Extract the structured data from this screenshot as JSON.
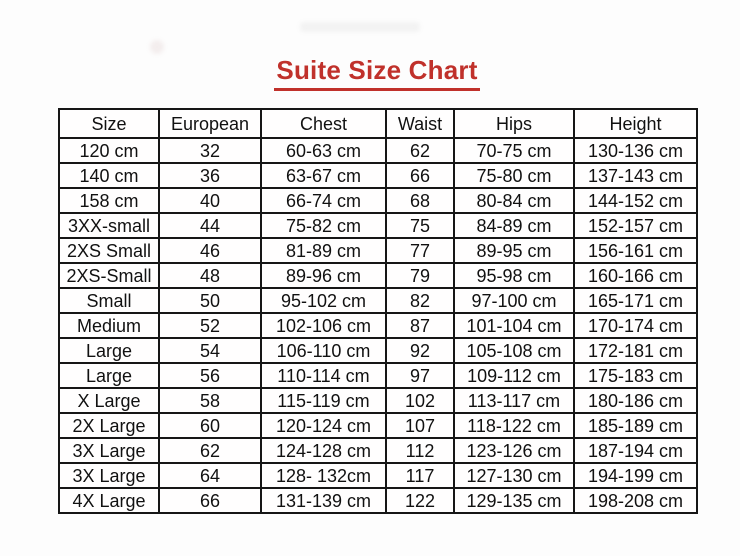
{
  "title": {
    "text": "Suite Size Chart",
    "color": "#c0312b"
  },
  "table": {
    "columns": [
      "Size",
      "European",
      "Chest",
      "Waist",
      "Hips",
      "Height"
    ],
    "rows": [
      [
        "120 cm",
        "32",
        "60-63 cm",
        "62",
        "70-75 cm",
        "130-136 cm"
      ],
      [
        "140 cm",
        "36",
        "63-67 cm",
        "66",
        "75-80 cm",
        "137-143 cm"
      ],
      [
        "158 cm",
        "40",
        "66-74 cm",
        "68",
        "80-84 cm",
        "144-152 cm"
      ],
      [
        "3XX-small",
        "44",
        "75-82 cm",
        "75",
        "84-89 cm",
        "152-157 cm"
      ],
      [
        "2XS Small",
        "46",
        "81-89 cm",
        "77",
        "89-95 cm",
        "156-161 cm"
      ],
      [
        "2XS-Small",
        "48",
        "89-96 cm",
        "79",
        "95-98 cm",
        "160-166 cm"
      ],
      [
        "Small",
        "50",
        "95-102 cm",
        "82",
        "97-100 cm",
        "165-171 cm"
      ],
      [
        "Medium",
        "52",
        "102-106 cm",
        "87",
        "101-104 cm",
        "170-174 cm"
      ],
      [
        "Large",
        "54",
        "106-110 cm",
        "92",
        "105-108 cm",
        "172-181 cm"
      ],
      [
        "Large",
        "56",
        "110-114 cm",
        "97",
        "109-112 cm",
        "175-183 cm"
      ],
      [
        "X Large",
        "58",
        "115-119 cm",
        "102",
        "113-117 cm",
        "180-186 cm"
      ],
      [
        "2X Large",
        "60",
        "120-124 cm",
        "107",
        "118-122 cm",
        "185-189 cm"
      ],
      [
        "3X Large",
        "62",
        "124-128 cm",
        "112",
        "123-126 cm",
        "187-194 cm"
      ],
      [
        "3X Large",
        "64",
        "128- 132cm",
        "117",
        "127-130 cm",
        "194-199 cm"
      ],
      [
        "4X Large",
        "66",
        "131-139 cm",
        "122",
        "129-135 cm",
        "198-208 cm"
      ]
    ]
  }
}
